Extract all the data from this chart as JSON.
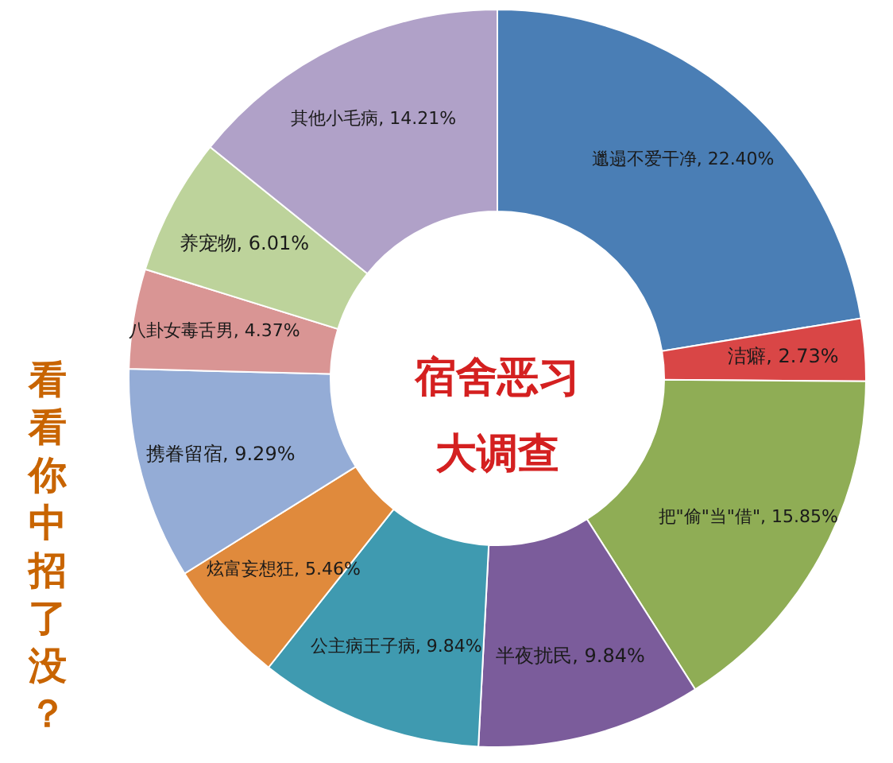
{
  "chart_data": {
    "type": "donut",
    "title": "宿舍恶习大调查",
    "categories": [
      "邋遢不爱干净",
      "洁癖",
      "把\"偷\"当\"借\"",
      "半夜扰民",
      "公主病王子病",
      "炫富妄想狂",
      "携眷留宿",
      "八卦女毒舌男",
      "养宠物",
      "其他小毛病"
    ],
    "values": [
      22.4,
      2.73,
      15.85,
      9.84,
      9.84,
      5.46,
      9.29,
      4.37,
      6.01,
      14.21
    ],
    "value_labels": [
      "22.40%",
      "2.73%",
      "15.85%",
      "9.84%",
      "9.84%",
      "5.46%",
      "9.29%",
      "4.37%",
      "6.01%",
      "14.21%"
    ],
    "colors": [
      "#4a7eb5",
      "#d94646",
      "#8fad55",
      "#7b5c9b",
      "#3f9ab0",
      "#e08a3c",
      "#94acd6",
      "#d99594",
      "#bdd39b",
      "#b0a1c8"
    ],
    "annotations": [
      "看看你中招了没？"
    ]
  }
}
